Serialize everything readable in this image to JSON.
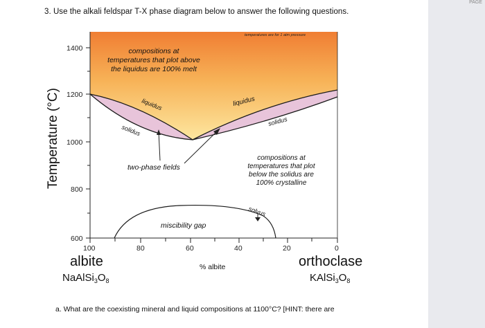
{
  "question": {
    "number": "3.",
    "text": "Use the alkali feldspar T-X phase diagram below to answer the following questions."
  },
  "subquestion": {
    "letter": "a.",
    "text": "What are the coexisting mineral and liquid compositions at 1100°C? [HINT: there are"
  },
  "corner_tag": "PAGE",
  "diagram": {
    "pressure_note": "temperatures are for 1 atm pressure",
    "y_axis_label": "Temperature (°C)",
    "y_ticks": [
      "1400",
      "1200",
      "1000",
      "800",
      "600"
    ],
    "x_ticks": [
      "100",
      "80",
      "60",
      "40",
      "20",
      "0"
    ],
    "x_axis_label": "% albite",
    "left_mineral": "albite",
    "left_formula_main": "NaAlSi",
    "left_formula_sub1": "3",
    "left_formula_o": "O",
    "left_formula_sub2": "8",
    "right_mineral": "orthoclase",
    "right_formula_main": "KAlSi",
    "right_formula_sub1": "3",
    "right_formula_o": "O",
    "right_formula_sub2": "8",
    "liquid_note_1": "compositions at",
    "liquid_note_2": "temperatures that plot above",
    "liquid_note_3": "the liquidus are 100% melt",
    "liquidus_left": "liquidus",
    "liquidus_right": "liquidus",
    "solidus_left": "solidus",
    "solidus_right": "solidus",
    "two_phase": "two-phase fields",
    "crystal_note_1": "compositions at",
    "crystal_note_2": "temperatures that plot",
    "crystal_note_3": "below the solidus are",
    "crystal_note_4": "100% crystalline",
    "solvus": "solvus",
    "miscibility_gap": "miscibility gap",
    "colors": {
      "melt_top": "#f28a3a",
      "melt_bottom": "#fde39a",
      "two_phase_fill": "#e9c7dc",
      "curve": "#1a1a1a"
    }
  }
}
